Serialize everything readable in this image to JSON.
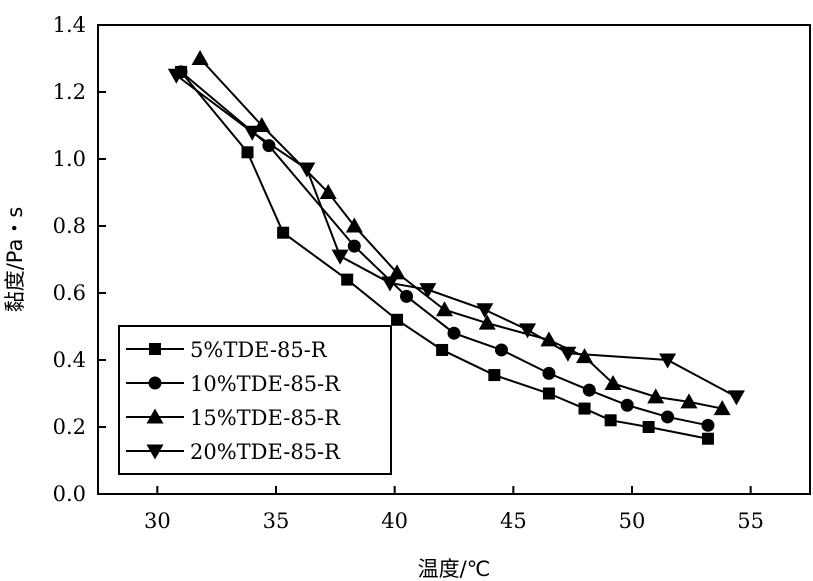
{
  "chart_data": {
    "type": "line",
    "title": "",
    "xlabel": "温度/℃",
    "ylabel": "黏度/Pa・s",
    "xlim": [
      27.5,
      57.5
    ],
    "ylim": [
      0,
      1.4
    ],
    "xticks": [
      "30",
      "35",
      "40",
      "45",
      "50",
      "55"
    ],
    "yticks": [
      "0.0",
      "0.2",
      "0.4",
      "0.6",
      "0.8",
      "1.0",
      "1.2",
      "1.4"
    ],
    "grid": false,
    "legend_position": "bottom-left",
    "series": [
      {
        "name": "5%TDE-85-R",
        "marker": "square",
        "x": [
          31.0,
          33.8,
          35.3,
          38.0,
          40.1,
          42.0,
          44.2,
          46.5,
          48.0,
          49.1,
          50.7,
          53.2
        ],
        "y": [
          1.26,
          1.02,
          0.78,
          0.64,
          0.52,
          0.43,
          0.355,
          0.3,
          0.255,
          0.22,
          0.2,
          0.165
        ]
      },
      {
        "name": "10%TDE-85-R",
        "marker": "circle",
        "x": [
          31.0,
          34.7,
          38.3,
          40.5,
          42.5,
          44.5,
          46.5,
          48.2,
          49.8,
          51.5,
          53.2
        ],
        "y": [
          1.26,
          1.04,
          0.74,
          0.59,
          0.48,
          0.43,
          0.36,
          0.31,
          0.265,
          0.23,
          0.205
        ]
      },
      {
        "name": "15%TDE-85-R",
        "marker": "triangle-up",
        "x": [
          31.8,
          34.4,
          37.2,
          38.3,
          40.1,
          42.1,
          43.9,
          46.5,
          48.0,
          49.2,
          51.0,
          52.4,
          53.8
        ],
        "y": [
          1.3,
          1.1,
          0.9,
          0.8,
          0.66,
          0.55,
          0.51,
          0.46,
          0.41,
          0.33,
          0.29,
          0.275,
          0.255
        ]
      },
      {
        "name": "20%TDE-85-R",
        "marker": "triangle-down",
        "x": [
          30.8,
          34.0,
          36.3,
          37.7,
          39.8,
          41.4,
          43.8,
          45.6,
          47.3,
          51.5,
          54.4
        ],
        "y": [
          1.25,
          1.08,
          0.97,
          0.71,
          0.63,
          0.61,
          0.55,
          0.49,
          0.42,
          0.4,
          0.29
        ]
      }
    ]
  }
}
